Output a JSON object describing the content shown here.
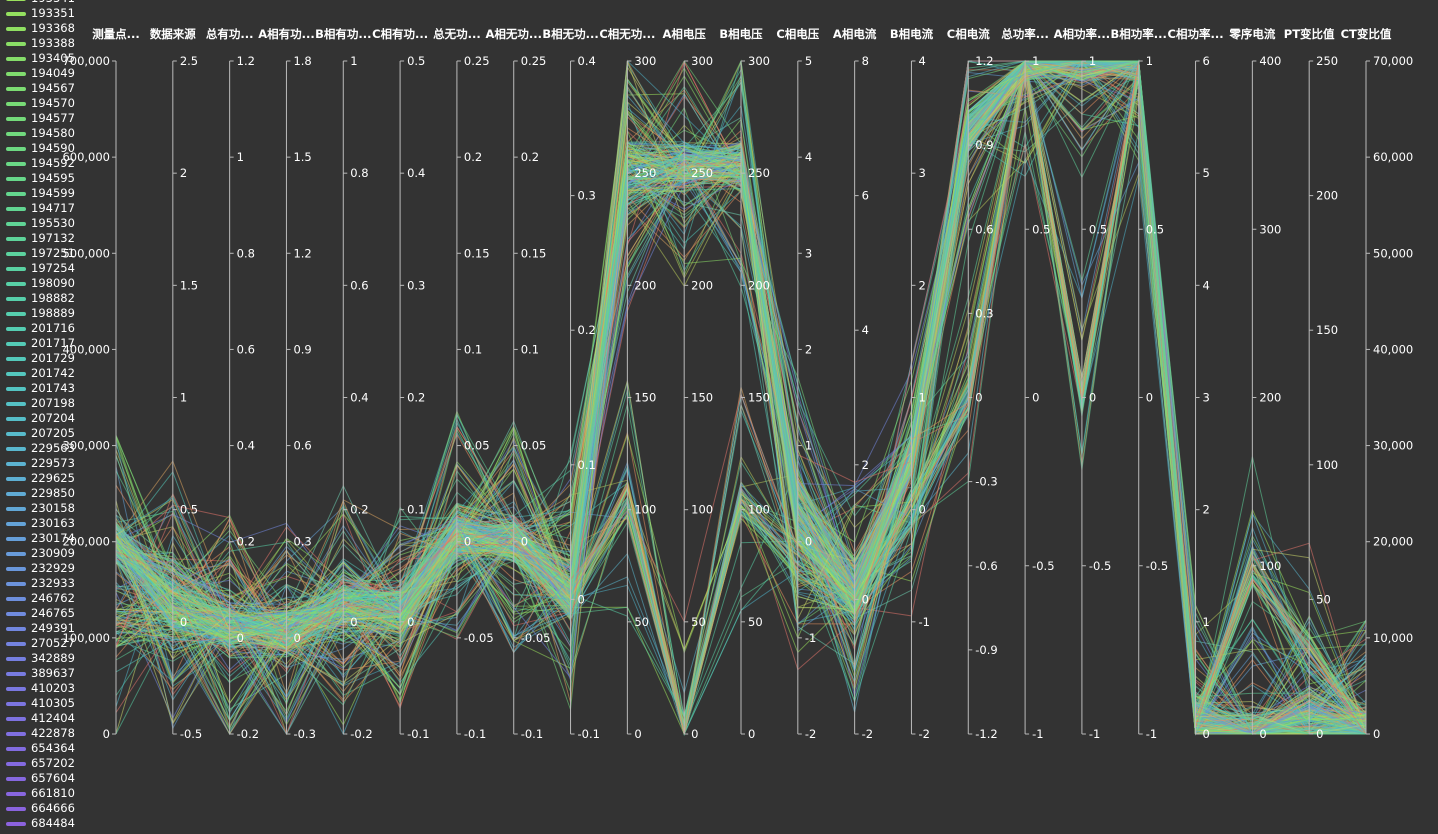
{
  "chart_data": {
    "type": "parallel",
    "axes": [
      {
        "name": "测量点...",
        "min": 0,
        "max": 700000,
        "ticks": [
          "0",
          "100,000",
          "200,000",
          "300,000",
          "400,000",
          "500,000",
          "600,000",
          "700,000"
        ],
        "tick_values": [
          0,
          100000,
          200000,
          300000,
          400000,
          500000,
          600000,
          700000
        ],
        "label_side": "left"
      },
      {
        "name": "数据来源",
        "min": -0.5,
        "max": 2.5,
        "ticks": [
          "-0.5",
          "0",
          "0.5",
          "1",
          "1.5",
          "2",
          "2.5"
        ],
        "tick_values": [
          -0.5,
          0,
          0.5,
          1,
          1.5,
          2,
          2.5
        ]
      },
      {
        "name": "总有功...",
        "min": -0.2,
        "max": 1.2,
        "ticks": [
          "-0.2",
          "0",
          "0.2",
          "0.4",
          "0.6",
          "0.8",
          "1",
          "1.2"
        ],
        "tick_values": [
          -0.2,
          0,
          0.2,
          0.4,
          0.6,
          0.8,
          1,
          1.2
        ]
      },
      {
        "name": "A相有功...",
        "min": -0.3,
        "max": 1.8,
        "ticks": [
          "-0.3",
          "0",
          "0.3",
          "0.6",
          "0.9",
          "1.2",
          "1.5",
          "1.8"
        ],
        "tick_values": [
          -0.3,
          0,
          0.3,
          0.6,
          0.9,
          1.2,
          1.5,
          1.8
        ]
      },
      {
        "name": "B相有功...",
        "min": -0.2,
        "max": 1,
        "ticks": [
          "-0.2",
          "0",
          "0.2",
          "0.4",
          "0.6",
          "0.8",
          "1"
        ],
        "tick_values": [
          -0.2,
          0,
          0.2,
          0.4,
          0.6,
          0.8,
          1
        ]
      },
      {
        "name": "C相有功...",
        "min": -0.1,
        "max": 0.5,
        "ticks": [
          "-0.1",
          "0",
          "0.1",
          "0.2",
          "0.3",
          "0.4",
          "0.5"
        ],
        "tick_values": [
          -0.1,
          0,
          0.1,
          0.2,
          0.3,
          0.4,
          0.5
        ]
      },
      {
        "name": "总无功...",
        "min": -0.1,
        "max": 0.25,
        "ticks": [
          "-0.1",
          "-0.05",
          "0",
          "0.05",
          "0.1",
          "0.15",
          "0.2",
          "0.25"
        ],
        "tick_values": [
          -0.1,
          -0.05,
          0,
          0.05,
          0.1,
          0.15,
          0.2,
          0.25
        ]
      },
      {
        "name": "A相无功...",
        "min": -0.1,
        "max": 0.25,
        "ticks": [
          "-0.1",
          "-0.05",
          "0",
          "0.05",
          "0.1",
          "0.15",
          "0.2",
          "0.25"
        ],
        "tick_values": [
          -0.1,
          -0.05,
          0,
          0.05,
          0.1,
          0.15,
          0.2,
          0.25
        ]
      },
      {
        "name": "B相无功...",
        "min": -0.1,
        "max": 0.4,
        "ticks": [
          "-0.1",
          "0",
          "0.1",
          "0.2",
          "0.3",
          "0.4"
        ],
        "tick_values": [
          -0.1,
          0,
          0.1,
          0.2,
          0.3,
          0.4
        ]
      },
      {
        "name": "C相无功...",
        "min": 0,
        "max": 300,
        "ticks": [
          "0",
          "50",
          "100",
          "150",
          "200",
          "250",
          "300"
        ],
        "tick_values": [
          0,
          50,
          100,
          150,
          200,
          250,
          300
        ]
      },
      {
        "name": "A相电压",
        "min": 0,
        "max": 300,
        "ticks": [
          "0",
          "50",
          "100",
          "150",
          "200",
          "250",
          "300"
        ],
        "tick_values": [
          0,
          50,
          100,
          150,
          200,
          250,
          300
        ]
      },
      {
        "name": "B相电压",
        "min": 0,
        "max": 300,
        "ticks": [
          "0",
          "50",
          "100",
          "150",
          "200",
          "250",
          "300"
        ],
        "tick_values": [
          0,
          50,
          100,
          150,
          200,
          250,
          300
        ]
      },
      {
        "name": "C相电压",
        "min": -2,
        "max": 5,
        "ticks": [
          "-2",
          "-1",
          "0",
          "1",
          "2",
          "3",
          "4",
          "5"
        ],
        "tick_values": [
          -2,
          -1,
          0,
          1,
          2,
          3,
          4,
          5
        ]
      },
      {
        "name": "A相电流",
        "min": -2,
        "max": 8,
        "ticks": [
          "-2",
          "0",
          "2",
          "4",
          "6",
          "8"
        ],
        "tick_values": [
          -2,
          0,
          2,
          4,
          6,
          8
        ]
      },
      {
        "name": "B相电流",
        "min": -2,
        "max": 4,
        "ticks": [
          "-2",
          "-1",
          "0",
          "1",
          "2",
          "3",
          "4"
        ],
        "tick_values": [
          -2,
          -1,
          0,
          1,
          2,
          3,
          4
        ]
      },
      {
        "name": "C相电流",
        "min": -1.2,
        "max": 1.2,
        "ticks": [
          "-1.2",
          "-0.9",
          "-0.6",
          "-0.3",
          "0",
          "0.3",
          "0.6",
          "0.9",
          "1.2"
        ],
        "tick_values": [
          -1.2,
          -0.9,
          -0.6,
          -0.3,
          0,
          0.3,
          0.6,
          0.9,
          1.2
        ]
      },
      {
        "name": "总功率...",
        "min": -1,
        "max": 1,
        "ticks": [
          "-1",
          "-0.5",
          "0",
          "0.5",
          "1"
        ],
        "tick_values": [
          -1,
          -0.5,
          0,
          0.5,
          1
        ]
      },
      {
        "name": "A相功率...",
        "min": -1,
        "max": 1,
        "ticks": [
          "-1",
          "-0.5",
          "0",
          "0.5",
          "1"
        ],
        "tick_values": [
          -1,
          -0.5,
          0,
          0.5,
          1
        ]
      },
      {
        "name": "B相功率...",
        "min": -1,
        "max": 1,
        "ticks": [
          "-1",
          "-0.5",
          "0",
          "0.5",
          "1"
        ],
        "tick_values": [
          -1,
          -0.5,
          0,
          0.5,
          1
        ]
      },
      {
        "name": "C相功率...",
        "min": 0,
        "max": 6,
        "ticks": [
          "0",
          "1",
          "2",
          "3",
          "4",
          "5",
          "6"
        ],
        "tick_values": [
          0,
          1,
          2,
          3,
          4,
          5,
          6
        ]
      },
      {
        "name": "零序电流",
        "min": 0,
        "max": 400,
        "ticks": [
          "0",
          "100",
          "200",
          "300",
          "400"
        ],
        "tick_values": [
          0,
          100,
          200,
          300,
          400
        ]
      },
      {
        "name": "PT变比值",
        "min": 0,
        "max": 250,
        "ticks": [
          "0",
          "50",
          "100",
          "150",
          "200",
          "250"
        ],
        "tick_values": [
          0,
          50,
          100,
          150,
          200,
          250
        ]
      },
      {
        "name": "CT变比值",
        "min": 0,
        "max": 70000,
        "ticks": [
          "0",
          "10,000",
          "20,000",
          "30,000",
          "40,000",
          "50,000",
          "60,000",
          "70,000"
        ],
        "tick_values": [
          0,
          10000,
          20000,
          30000,
          40000,
          50000,
          60000,
          70000
        ],
        "label_side": "right"
      }
    ],
    "legend": [
      "193341",
      "193351",
      "193368",
      "193388",
      "193405",
      "194049",
      "194567",
      "194570",
      "194577",
      "194580",
      "194590",
      "194592",
      "194595",
      "194599",
      "194717",
      "195530",
      "197132",
      "197251",
      "197254",
      "198090",
      "198882",
      "198889",
      "201716",
      "201717",
      "201729",
      "201742",
      "201743",
      "207198",
      "207204",
      "207205",
      "229563",
      "229573",
      "229625",
      "229850",
      "230158",
      "230163",
      "230174",
      "230909",
      "232929",
      "232933",
      "246762",
      "246765",
      "249391",
      "270527",
      "342889",
      "389637",
      "410203",
      "410305",
      "412404",
      "422878",
      "654364",
      "657202",
      "657604",
      "661810",
      "664666",
      "684484"
    ],
    "legend_colors": [
      "#9be15d",
      "#94e05f",
      "#8fdf62",
      "#8ade66",
      "#85dd6a",
      "#80dc6e",
      "#7cdc72",
      "#78db76",
      "#74da7a",
      "#71d97e",
      "#6dd882",
      "#6ad886",
      "#67d78a",
      "#64d68e",
      "#62d592",
      "#60d496",
      "#5ed39a",
      "#5cd29e",
      "#5ad1a2",
      "#58d0a6",
      "#57cfaa",
      "#56ceae",
      "#55cdb2",
      "#54cbb6",
      "#54c9ba",
      "#54c7be",
      "#54c4c2",
      "#55c1c5",
      "#56bec8",
      "#58bbcb",
      "#5ab7ce",
      "#5cb3d1",
      "#5eafd3",
      "#60abd5",
      "#62a7d6",
      "#64a3d8",
      "#669fd9",
      "#689bda",
      "#6a97db",
      "#6c93dc",
      "#6e8fdd",
      "#708bde",
      "#7287df",
      "#7483df",
      "#767fe0",
      "#787be0",
      "#7a78e0",
      "#7c75e0",
      "#7e72e0",
      "#806fe0",
      "#826ce0",
      "#846ae0",
      "#8668df",
      "#8866df",
      "#8a64de",
      "#8c62de"
    ],
    "line_colors": [
      "#8de067",
      "#74d97b",
      "#5ed39a",
      "#58d0a6",
      "#54c9ba",
      "#5ab7ce",
      "#64a3d8",
      "#7287df",
      "#9be15d",
      "#c9d36a",
      "#b6c95a",
      "#d9a35f",
      "#e8905f",
      "#e0736a",
      "#6ecfb0",
      "#4fb3c9"
    ],
    "profiles": [
      {
        "values": [
          200000,
          0.05,
          0.02,
          0.02,
          0.03,
          0.01,
          0.003,
          0.0,
          0.0,
          255,
          255,
          255,
          0.2,
          0.05,
          0.5,
          0.95,
          1.0,
          1.0,
          1.0,
          0.1,
          0.0,
          5,
          400
        ],
        "weight": 18
      },
      {
        "values": [
          110000,
          0.0,
          0.0,
          0.0,
          0.0,
          0.0,
          0.0,
          0.0,
          0.0,
          105,
          0,
          105,
          -0.2,
          -0.1,
          0.0,
          0.0,
          1.0,
          0.0,
          1.0,
          0.05,
          100,
          30,
          200
        ],
        "weight": 6
      },
      {
        "values": [
          200000,
          0.2,
          0.05,
          0.05,
          0.05,
          0.02,
          0.01,
          0.003,
          0.02,
          240,
          250,
          250,
          0.5,
          0.3,
          0.5,
          0.95,
          1.0,
          1.0,
          1.0,
          0.2,
          0.0,
          10,
          1000
        ],
        "weight": 10
      }
    ]
  }
}
